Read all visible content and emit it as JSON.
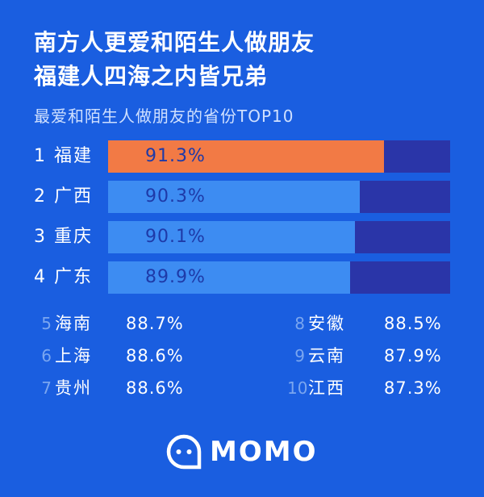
{
  "title_line1": "南方人更爱和陌生人做朋友",
  "title_line2": "福建人四海之内皆兄弟",
  "subtitle": "最爱和陌生人做朋友的省份TOP10",
  "brand": "MOMO",
  "colors": {
    "background": "#1a5ee0",
    "top_bar": "#f27a45",
    "bar": "#3d8cf2",
    "track": "#2a35a8"
  },
  "chart_data": {
    "type": "bar",
    "orientation": "horizontal",
    "title": "最爱和陌生人做朋友的省份TOP10",
    "ranks": [
      "1",
      "2",
      "3",
      "4",
      "5",
      "6",
      "7",
      "8",
      "9",
      "10"
    ],
    "categories": [
      "福建",
      "广西",
      "重庆",
      "广东",
      "海南",
      "上海",
      "贵州",
      "安徽",
      "云南",
      "江西"
    ],
    "values": [
      91.3,
      90.3,
      90.1,
      89.9,
      88.7,
      88.6,
      88.6,
      88.5,
      87.9,
      87.3
    ],
    "value_labels": [
      "91.3%",
      "90.3%",
      "90.1%",
      "89.9%",
      "88.7%",
      "88.6%",
      "88.6%",
      "88.5%",
      "87.9%",
      "87.3%"
    ],
    "unit": "%",
    "bars_shown": 4
  }
}
